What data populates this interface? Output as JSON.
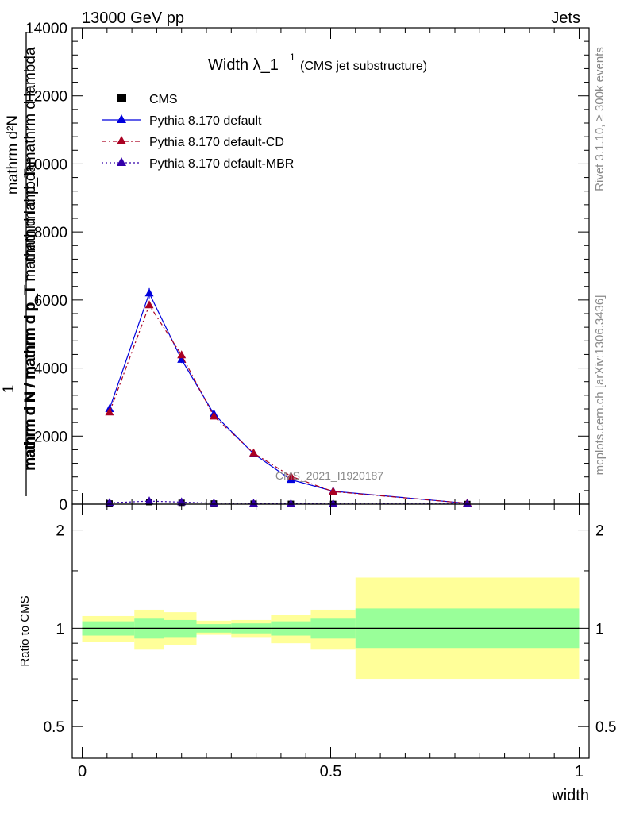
{
  "header": {
    "left": "13000 GeV pp",
    "right": "Jets"
  },
  "side_labels": {
    "rivet": "Rivet 3.1.10, ≥ 300k events",
    "mcplots": "mcplots.cern.ch [arXiv:1306.3436]"
  },
  "watermark": "CMS_2021_I1920187",
  "chart_data": [
    {
      "type": "line",
      "title": "Width λ_1",
      "title_sup": "1",
      "subtitle": "(CMS jet substructure)",
      "xlabel": "width",
      "ylabel_numerator": "mathrm d²N",
      "ylabel_denominator": "mathrm d p_T mathrm d lambda",
      "ylabel_factor_num": "1",
      "ylabel_factor_den": "mathrm d N / mathrm d p_T",
      "ylabel_overlap": "mathrm d N / mathrm d p_T mathrm d lambda",
      "xlim": [
        -0.02,
        1.02
      ],
      "ylim": [
        0,
        14000
      ],
      "yticks": [
        0,
        2000,
        4000,
        6000,
        8000,
        10000,
        12000,
        14000
      ],
      "ytick_labels": [
        "0",
        "2000",
        "4000",
        "6000",
        "8000",
        "10000",
        "12000",
        "14000"
      ],
      "x": [
        0.055,
        0.135,
        0.2,
        0.265,
        0.345,
        0.42,
        0.505,
        0.775
      ],
      "bin_edges": [
        0.0,
        0.105,
        0.165,
        0.23,
        0.3,
        0.38,
        0.46,
        0.55,
        1.0
      ],
      "legend": [
        {
          "name": "CMS",
          "color": "#000000",
          "marker": "square",
          "dash": "none"
        },
        {
          "name": "Pythia 8.170 default",
          "color": "#0000dd",
          "marker": "triangle",
          "dash": "solid"
        },
        {
          "name": "Pythia 8.170 default-CD",
          "color": "#aa0022",
          "marker": "triangle",
          "dash": "dashdot"
        },
        {
          "name": "Pythia 8.170 default-MBR",
          "color": "#3300aa",
          "marker": "triangle",
          "dash": "dotted"
        }
      ],
      "series": [
        {
          "name": "CMS",
          "values": [
            20,
            60,
            40,
            20,
            15,
            10,
            8,
            5
          ]
        },
        {
          "name": "Pythia 8.170 default",
          "values": [
            2800,
            6200,
            4250,
            2650,
            1480,
            720,
            380,
            25
          ]
        },
        {
          "name": "Pythia 8.170 default-CD",
          "values": [
            2700,
            5850,
            4380,
            2580,
            1500,
            820,
            370,
            25
          ]
        },
        {
          "name": "Pythia 8.170 default-MBR",
          "values": [
            40,
            90,
            60,
            30,
            20,
            12,
            10,
            5
          ]
        }
      ],
      "errors_default": [
        60,
        150,
        100,
        70,
        50,
        30,
        20,
        5
      ]
    },
    {
      "type": "area",
      "ylabel": "Ratio to CMS",
      "xlabel": "width",
      "xlim": [
        -0.02,
        1.02
      ],
      "ylim": [
        0.4,
        2.4
      ],
      "log_scale": true,
      "xticks": [
        0,
        0.5,
        1
      ],
      "xtick_labels": [
        "0",
        "0.5",
        "1"
      ],
      "yticks": [
        0.5,
        1,
        2
      ],
      "ytick_labels": [
        "0.5",
        "1",
        "2"
      ],
      "bin_edges": [
        0.0,
        0.105,
        0.165,
        0.23,
        0.3,
        0.38,
        0.46,
        0.55,
        1.0
      ],
      "band_inner": [
        [
          0.95,
          1.05
        ],
        [
          0.93,
          1.07
        ],
        [
          0.94,
          1.06
        ],
        [
          0.97,
          1.03
        ],
        [
          0.965,
          1.035
        ],
        [
          0.95,
          1.05
        ],
        [
          0.93,
          1.07
        ],
        [
          0.87,
          1.15
        ]
      ],
      "band_outer": [
        [
          0.91,
          1.09
        ],
        [
          0.86,
          1.14
        ],
        [
          0.89,
          1.12
        ],
        [
          0.955,
          1.055
        ],
        [
          0.94,
          1.06
        ],
        [
          0.9,
          1.1
        ],
        [
          0.86,
          1.14
        ],
        [
          0.7,
          1.43
        ]
      ],
      "colors": {
        "inner": "#99ff99",
        "outer": "#ffff99",
        "reference": "#000000"
      }
    }
  ]
}
